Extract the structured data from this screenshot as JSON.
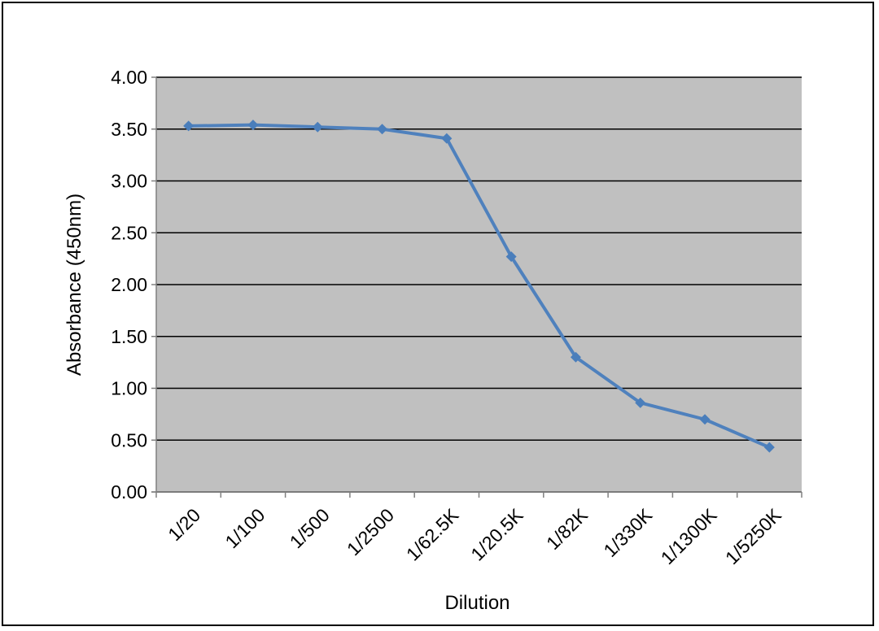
{
  "chart_data": {
    "type": "line",
    "title": "",
    "xlabel": "Dilution",
    "ylabel": "Absorbance (450nm)",
    "ylim": [
      0,
      4
    ],
    "ytick_step": 0.5,
    "ytick_labels": [
      "0.00",
      "0.50",
      "1.00",
      "1.50",
      "2.00",
      "2.50",
      "3.00",
      "3.50",
      "4.00"
    ],
    "categories": [
      "1/20",
      "1/100",
      "1/500",
      "1/2500",
      "1/62.5K",
      "1/20.5K",
      "1/82K",
      "1/330K",
      "1/1300K",
      "1/5250K"
    ],
    "series": [
      {
        "values": [
          3.53,
          3.54,
          3.52,
          3.5,
          3.41,
          2.27,
          1.3,
          0.86,
          0.7,
          0.43
        ]
      }
    ],
    "grid": true,
    "legend": "none",
    "colors": {
      "plot_background": "#c0c0c0",
      "gridline": "#000000",
      "series_line": "#4f81bd",
      "marker": "#4a7ebb"
    },
    "marker_shape": "diamond"
  }
}
